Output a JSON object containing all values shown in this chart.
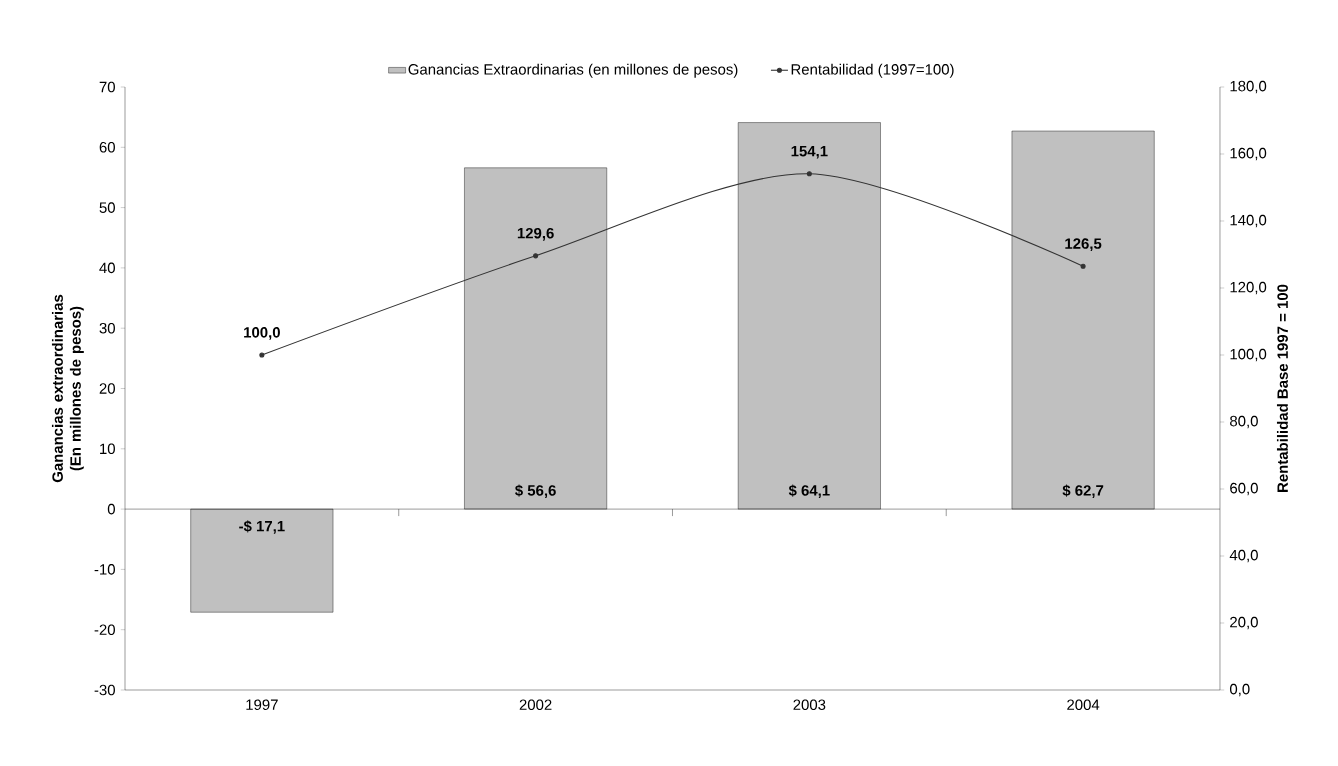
{
  "chart_data": {
    "type": "bar",
    "categories": [
      "1997",
      "2002",
      "2003",
      "2004"
    ],
    "ylabel": "Ganancias extraordinarias (En millones de pesos)",
    "y2label": "Rentabilidad Base 1997 = 100",
    "ylim": [
      -30,
      70
    ],
    "yticks": [
      -30,
      -20,
      -10,
      0,
      10,
      20,
      30,
      40,
      50,
      60,
      70
    ],
    "y2lim": [
      0,
      180
    ],
    "y2ticks": [
      {
        "value": 0,
        "label": "0,0"
      },
      {
        "value": 20,
        "label": "20,0"
      },
      {
        "value": 40,
        "label": "40,0"
      },
      {
        "value": 60,
        "label": "60,0"
      },
      {
        "value": 80,
        "label": "80,0"
      },
      {
        "value": 100,
        "label": "100,0"
      },
      {
        "value": 120,
        "label": "120,0"
      },
      {
        "value": 140,
        "label": "140,0"
      },
      {
        "value": 160,
        "label": "160,0"
      },
      {
        "value": 180,
        "label": "180,0"
      }
    ],
    "legend": "top",
    "grid": false,
    "ref_lines": [
      {
        "axis": "y",
        "value": 0
      }
    ],
    "series": [
      {
        "name": "Ganancias Extraordinarias (en millones de pesos)",
        "color": "#c0c0c0",
        "values": [
          -17.1,
          56.6,
          64.1,
          62.7
        ],
        "value_labels": [
          "-$ 17,1",
          "$ 56,6",
          "$ 64,1",
          "$ 62,7"
        ]
      },
      {
        "name": "Rentabilidad (1997=100)",
        "type": "line",
        "axis": "y2",
        "color": "#333333",
        "marker": "circle",
        "values": [
          100.0,
          129.6,
          154.1,
          126.5
        ],
        "value_labels": [
          "100,0",
          "129,6",
          "154,1",
          "126,5"
        ]
      }
    ]
  }
}
